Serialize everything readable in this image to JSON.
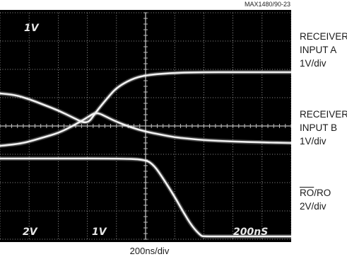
{
  "figure_code": "MAX1480/90-23",
  "xscale_label": "200ns/div",
  "screen": {
    "top_left": "1V",
    "bottom": [
      "2V",
      "1V",
      "200nS"
    ]
  },
  "labels": {
    "a": [
      "RECEIVER",
      "INPUT A",
      "1V/div"
    ],
    "b": [
      "RECEIVER",
      "INPUT B",
      "1V/div"
    ],
    "ro": {
      "overline_part": "RO",
      "rest": "/RO",
      "scale": "2V/div"
    }
  },
  "colors": {
    "screen": "#000000",
    "grid": "#bdbdbd",
    "trace": "#f2f2f2"
  },
  "chart_data": {
    "type": "line",
    "title": "",
    "xlabel": "200ns/div",
    "ylabel": "",
    "xlim": [
      0,
      10
    ],
    "ylim": [
      0,
      8
    ],
    "grid": true,
    "series": [
      {
        "name": "RECEIVER INPUT A",
        "x": [
          0,
          0.5,
          1,
          1.5,
          2,
          2.5,
          3,
          3.3,
          3.7,
          4,
          4.5,
          5,
          6,
          7,
          8,
          9,
          10
        ],
        "y": [
          5.15,
          5.1,
          4.95,
          4.75,
          4.55,
          4.3,
          4.05,
          4.5,
          5.0,
          5.35,
          5.65,
          5.8,
          5.88,
          5.9,
          5.9,
          5.9,
          5.9
        ]
      },
      {
        "name": "RECEIVER INPUT B",
        "x": [
          0,
          0.3,
          0.7,
          1,
          1.5,
          2,
          2.5,
          3,
          3.3,
          3.7,
          4,
          4.5,
          5,
          5.5,
          6,
          6.5,
          7,
          8,
          9,
          10
        ],
        "y": [
          3.3,
          3.33,
          3.38,
          3.45,
          3.6,
          3.75,
          4.0,
          4.3,
          4.5,
          4.3,
          4.15,
          3.95,
          3.8,
          3.7,
          3.6,
          3.55,
          3.5,
          3.45,
          3.42,
          3.4
        ]
      },
      {
        "name": "RO/RO",
        "x": [
          0,
          2,
          4,
          5,
          5.3,
          5.6,
          6,
          6.3,
          6.6,
          6.9,
          7,
          8,
          9,
          10
        ],
        "y": [
          2.85,
          2.85,
          2.85,
          2.82,
          2.6,
          2.15,
          1.5,
          0.95,
          0.45,
          0.12,
          0.1,
          0.1,
          0.1,
          0.1
        ]
      }
    ]
  }
}
